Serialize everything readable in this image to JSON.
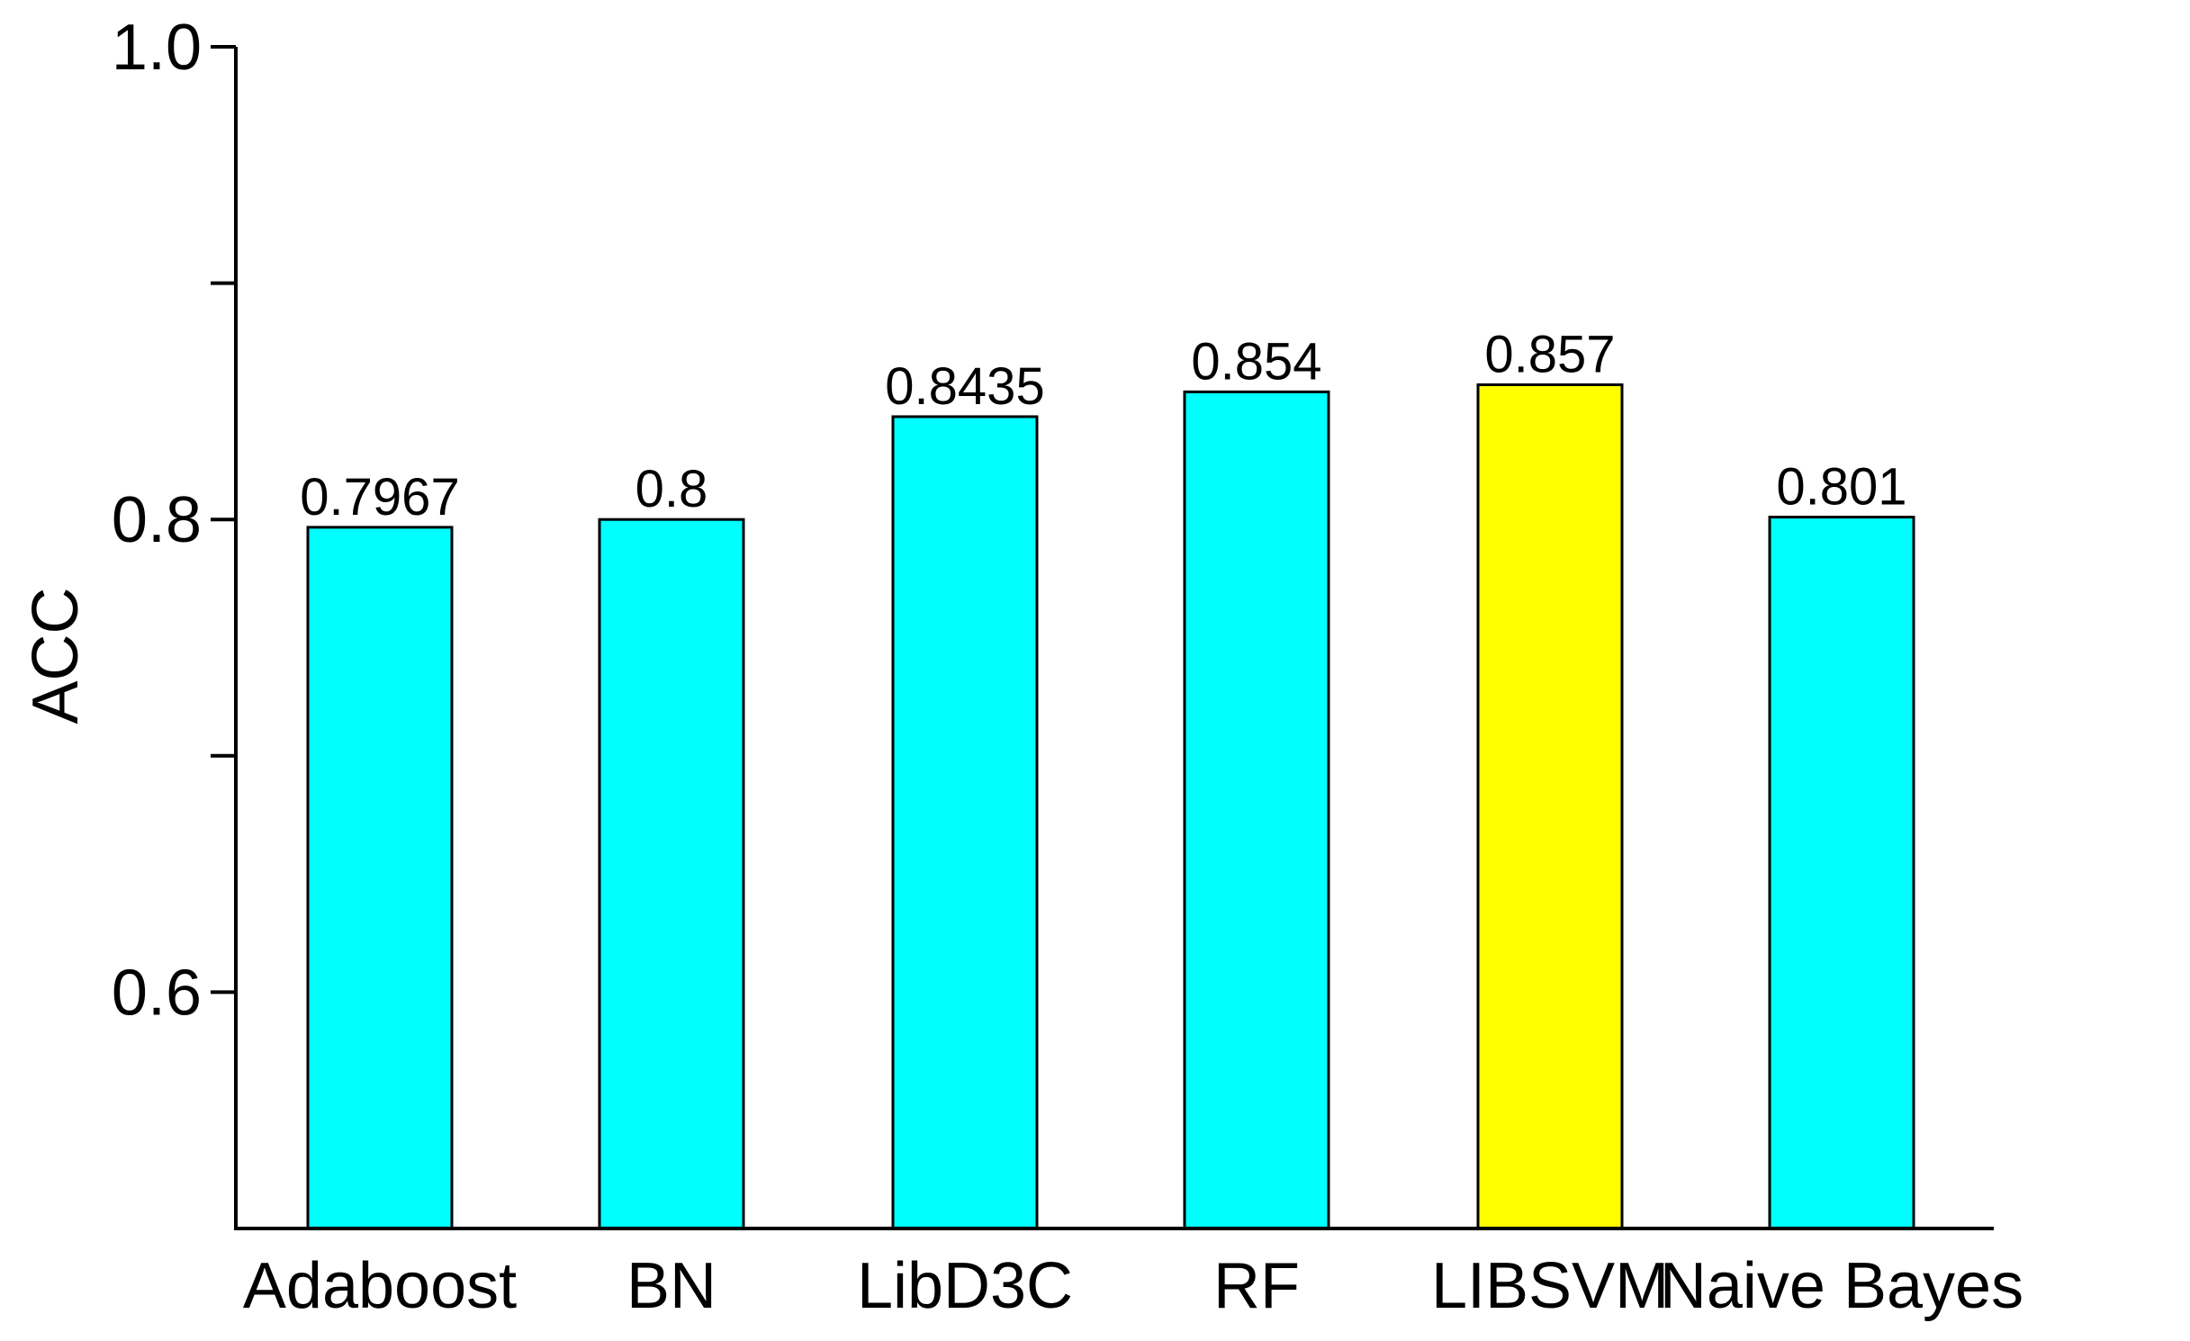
{
  "chart_data": {
    "type": "bar",
    "title": "",
    "xlabel": "",
    "ylabel": "ACC",
    "ylim": [
      0.5,
      1.0
    ],
    "yticks": [
      {
        "value": 0.6,
        "label": "0.6"
      },
      {
        "value": 0.7,
        "label": ""
      },
      {
        "value": 0.8,
        "label": "0.8"
      },
      {
        "value": 0.9,
        "label": ""
      },
      {
        "value": 1.0,
        "label": "1.0"
      }
    ],
    "grid": false,
    "legend": "none",
    "categories": [
      "Adaboost",
      "BN",
      "LibD3C",
      "RF",
      "LIBSVM",
      "Naive Bayes"
    ],
    "values": [
      0.7967,
      0.8,
      0.8435,
      0.854,
      0.857,
      0.801
    ],
    "value_labels": [
      "0.7967",
      "0.8",
      "0.8435",
      "0.854",
      "0.857",
      "0.801"
    ],
    "colors": [
      "#00ffff",
      "#00ffff",
      "#00ffff",
      "#00ffff",
      "#ffff00",
      "#00ffff"
    ]
  }
}
